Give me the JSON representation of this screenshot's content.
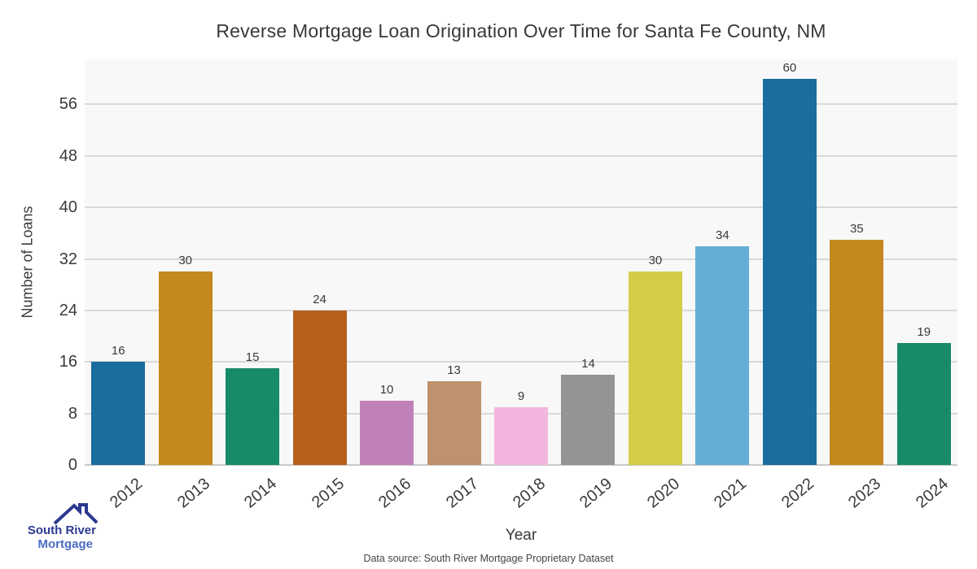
{
  "page": {
    "footer": "Data source: South River Mortgage Proprietary Dataset"
  },
  "logo": {
    "line1": "South River",
    "line2": "Mortgage",
    "color_primary": "#2b3990",
    "color_secondary": "#4a6bc0"
  },
  "chart_data": {
    "type": "bar",
    "title": "Reverse Mortgage Loan Origination Over Time for Santa Fe County, NM",
    "xlabel": "Year",
    "ylabel": "Number of Loans",
    "categories": [
      "2012",
      "2013",
      "2014",
      "2015",
      "2016",
      "2017",
      "2018",
      "2019",
      "2020",
      "2021",
      "2022",
      "2023",
      "2024"
    ],
    "values": [
      16,
      30,
      15,
      24,
      10,
      13,
      9,
      14,
      30,
      34,
      60,
      35,
      19
    ],
    "bar_colors": [
      "#1a6d9e",
      "#c4881f",
      "#178a68",
      "#b5601d",
      "#c080b8",
      "#bd926c",
      "#f2b6de",
      "#949494",
      "#d4cc48",
      "#64aed6",
      "#1a6d9e",
      "#c4881f",
      "#178a68"
    ],
    "value_labels": [
      16,
      30,
      15,
      24,
      10,
      13,
      9,
      14,
      30,
      34,
      60,
      35,
      19
    ],
    "yticks": [
      0,
      8,
      16,
      24,
      32,
      40,
      48,
      56
    ],
    "ylim": [
      0,
      63
    ],
    "grid": true,
    "legend": "none",
    "plot_background": "#f8f8f8",
    "gridline_color": "#d9d9d9"
  }
}
